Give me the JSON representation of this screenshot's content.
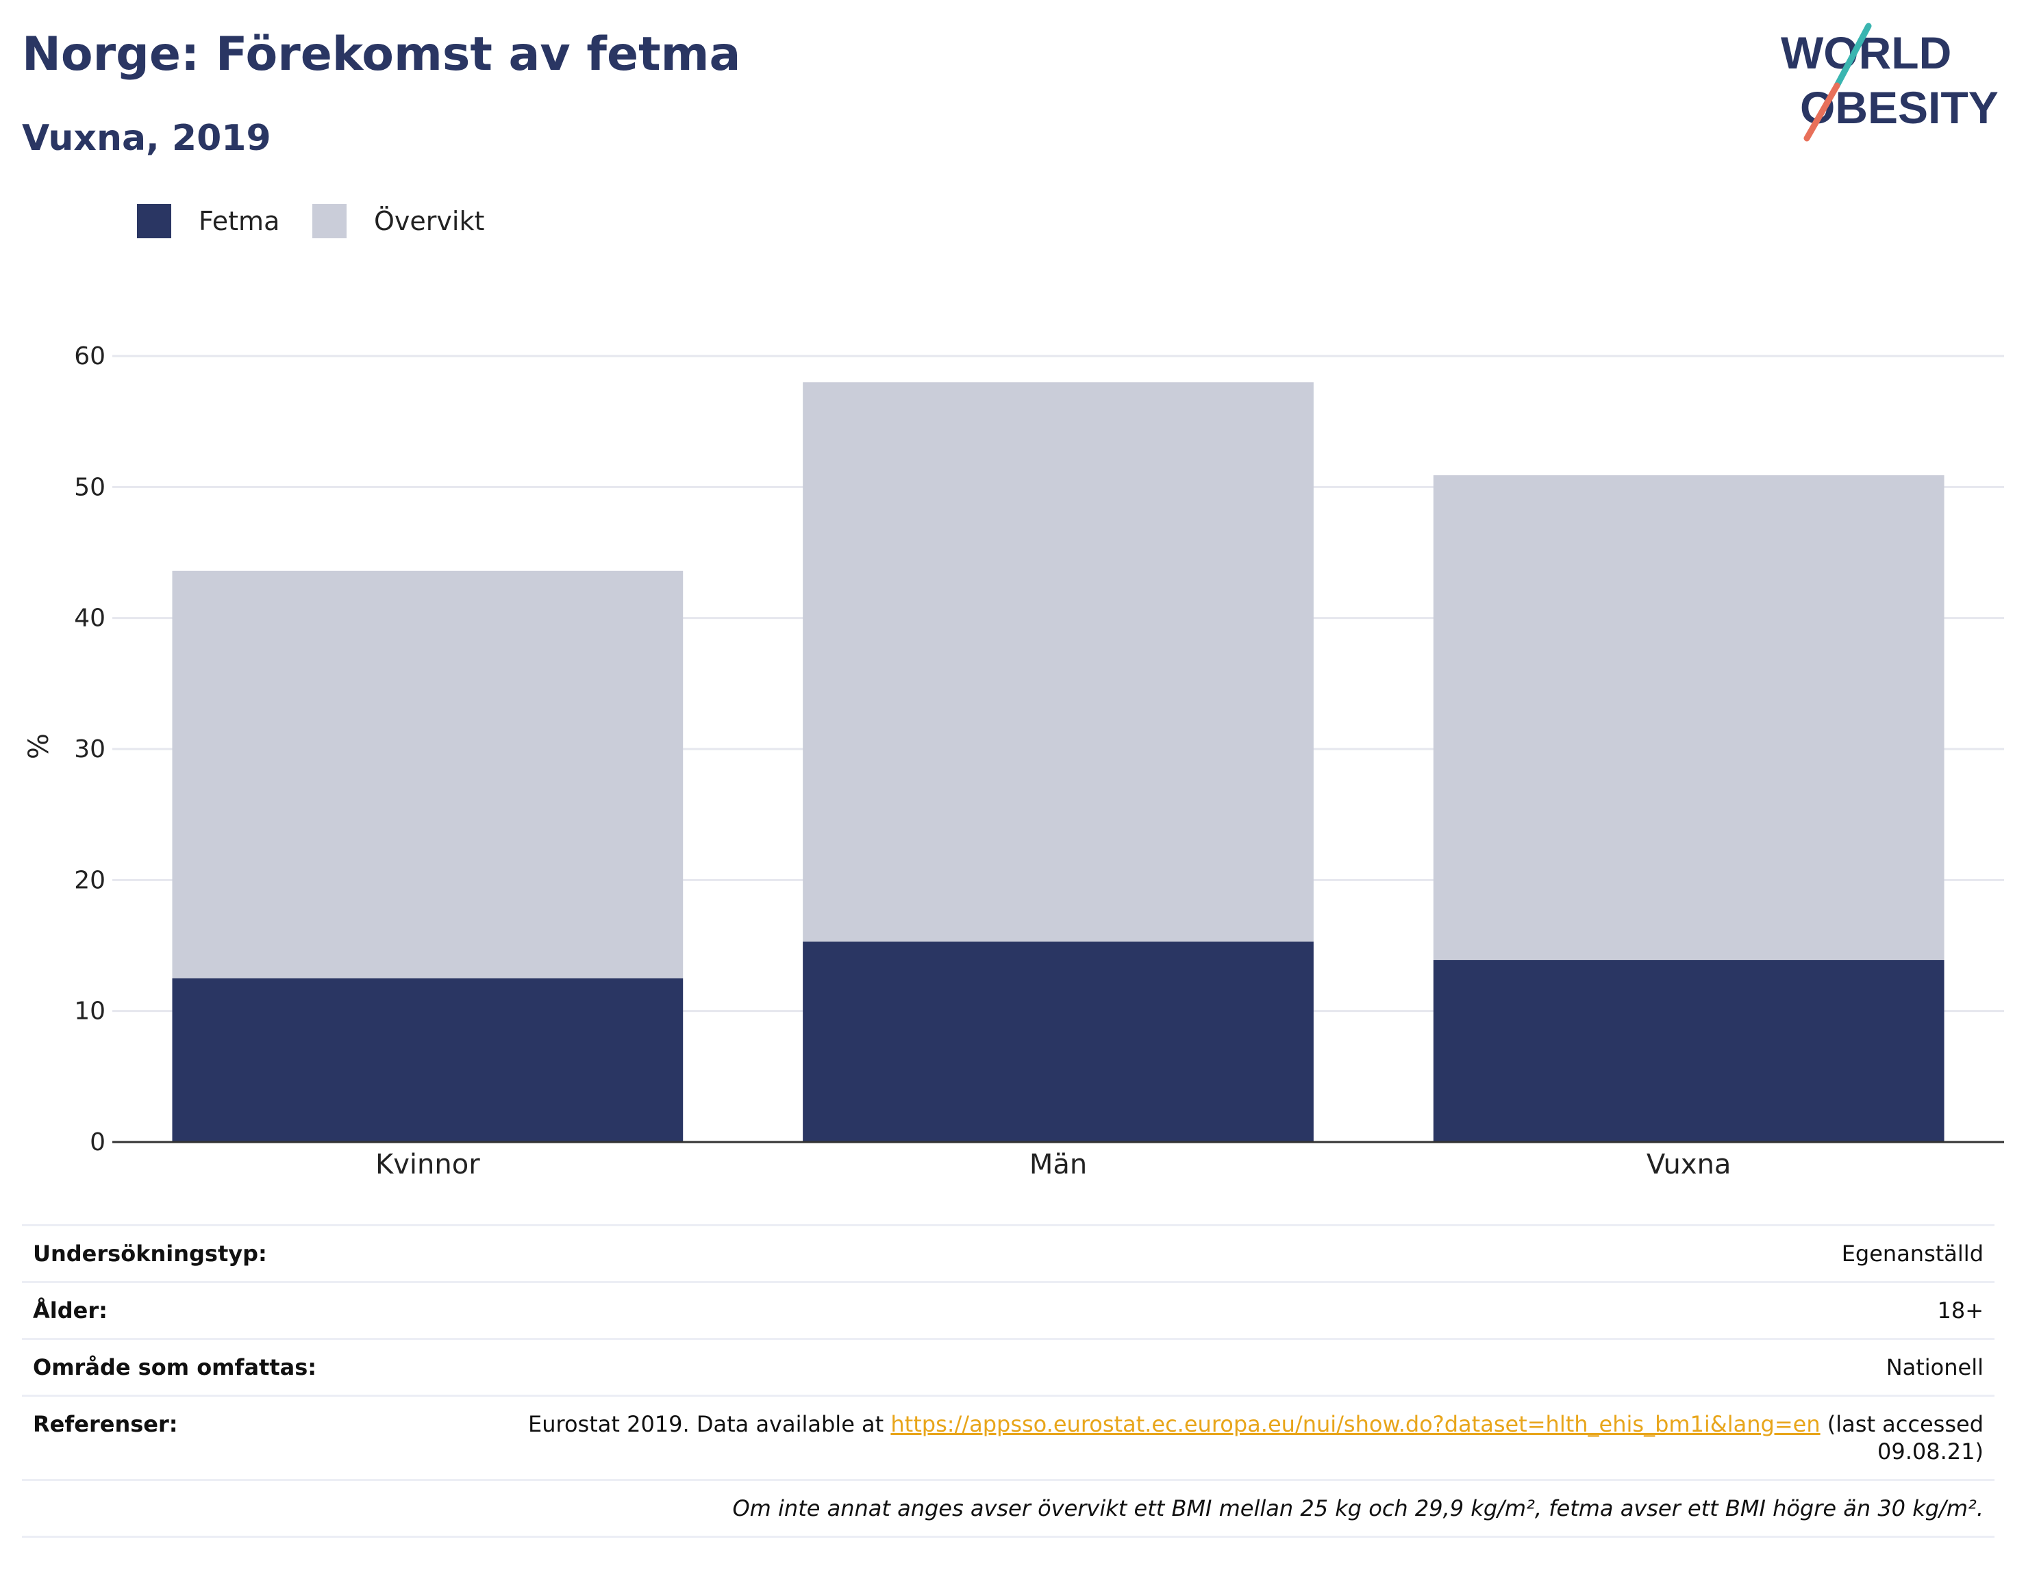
{
  "header": {
    "title": "Norge: Förekomst av fetma",
    "subtitle": "Vuxna, 2019"
  },
  "logo": {
    "line1": "WORLD",
    "line2": "OBESITY",
    "colors": {
      "text": "#2a3663",
      "slash_top": "#3ab5b0",
      "slash_bottom": "#e8705a"
    }
  },
  "legend": [
    {
      "name": "Fetma",
      "color": "#2a3663"
    },
    {
      "name": "Övervikt",
      "color": "#cacdd9"
    }
  ],
  "chart_data": {
    "type": "bar",
    "stacked": true,
    "categories": [
      "Kvinnor",
      "Män",
      "Vuxna"
    ],
    "series": [
      {
        "name": "Fetma",
        "color": "#2a3663",
        "values": [
          12.5,
          15.3,
          13.9
        ]
      },
      {
        "name": "Övervikt",
        "color": "#cacdd9",
        "values": [
          31.1,
          42.7,
          37.0
        ]
      }
    ],
    "totals": [
      43.6,
      58.0,
      50.9
    ],
    "ylabel": "%",
    "ylim": [
      0,
      60
    ],
    "yticks": [
      "0",
      "10",
      "20",
      "30",
      "40",
      "50",
      "60"
    ],
    "grid": true,
    "legend_position": "top-left"
  },
  "info": {
    "survey_type_label": "Undersökningstyp:",
    "survey_type_value": "Egenanställd",
    "age_label": "Ålder:",
    "age_value": "18+",
    "area_label": "Område som omfattas:",
    "area_value": "Nationell",
    "references_label": "Referenser:",
    "references_prefix": "Eurostat 2019. Data available at",
    "references_link": "https://appsso.eurostat.ec.europa.eu/nui/show.do?dataset=hlth_ehis_bm1i&lang=en",
    "references_suffix": "(last accessed 09.08.21)",
    "footnote": "Om inte annat anges avser övervikt ett BMI mellan 25 kg och 29,9 kg/m², fetma avser ett BMI högre än 30 kg/m²."
  }
}
